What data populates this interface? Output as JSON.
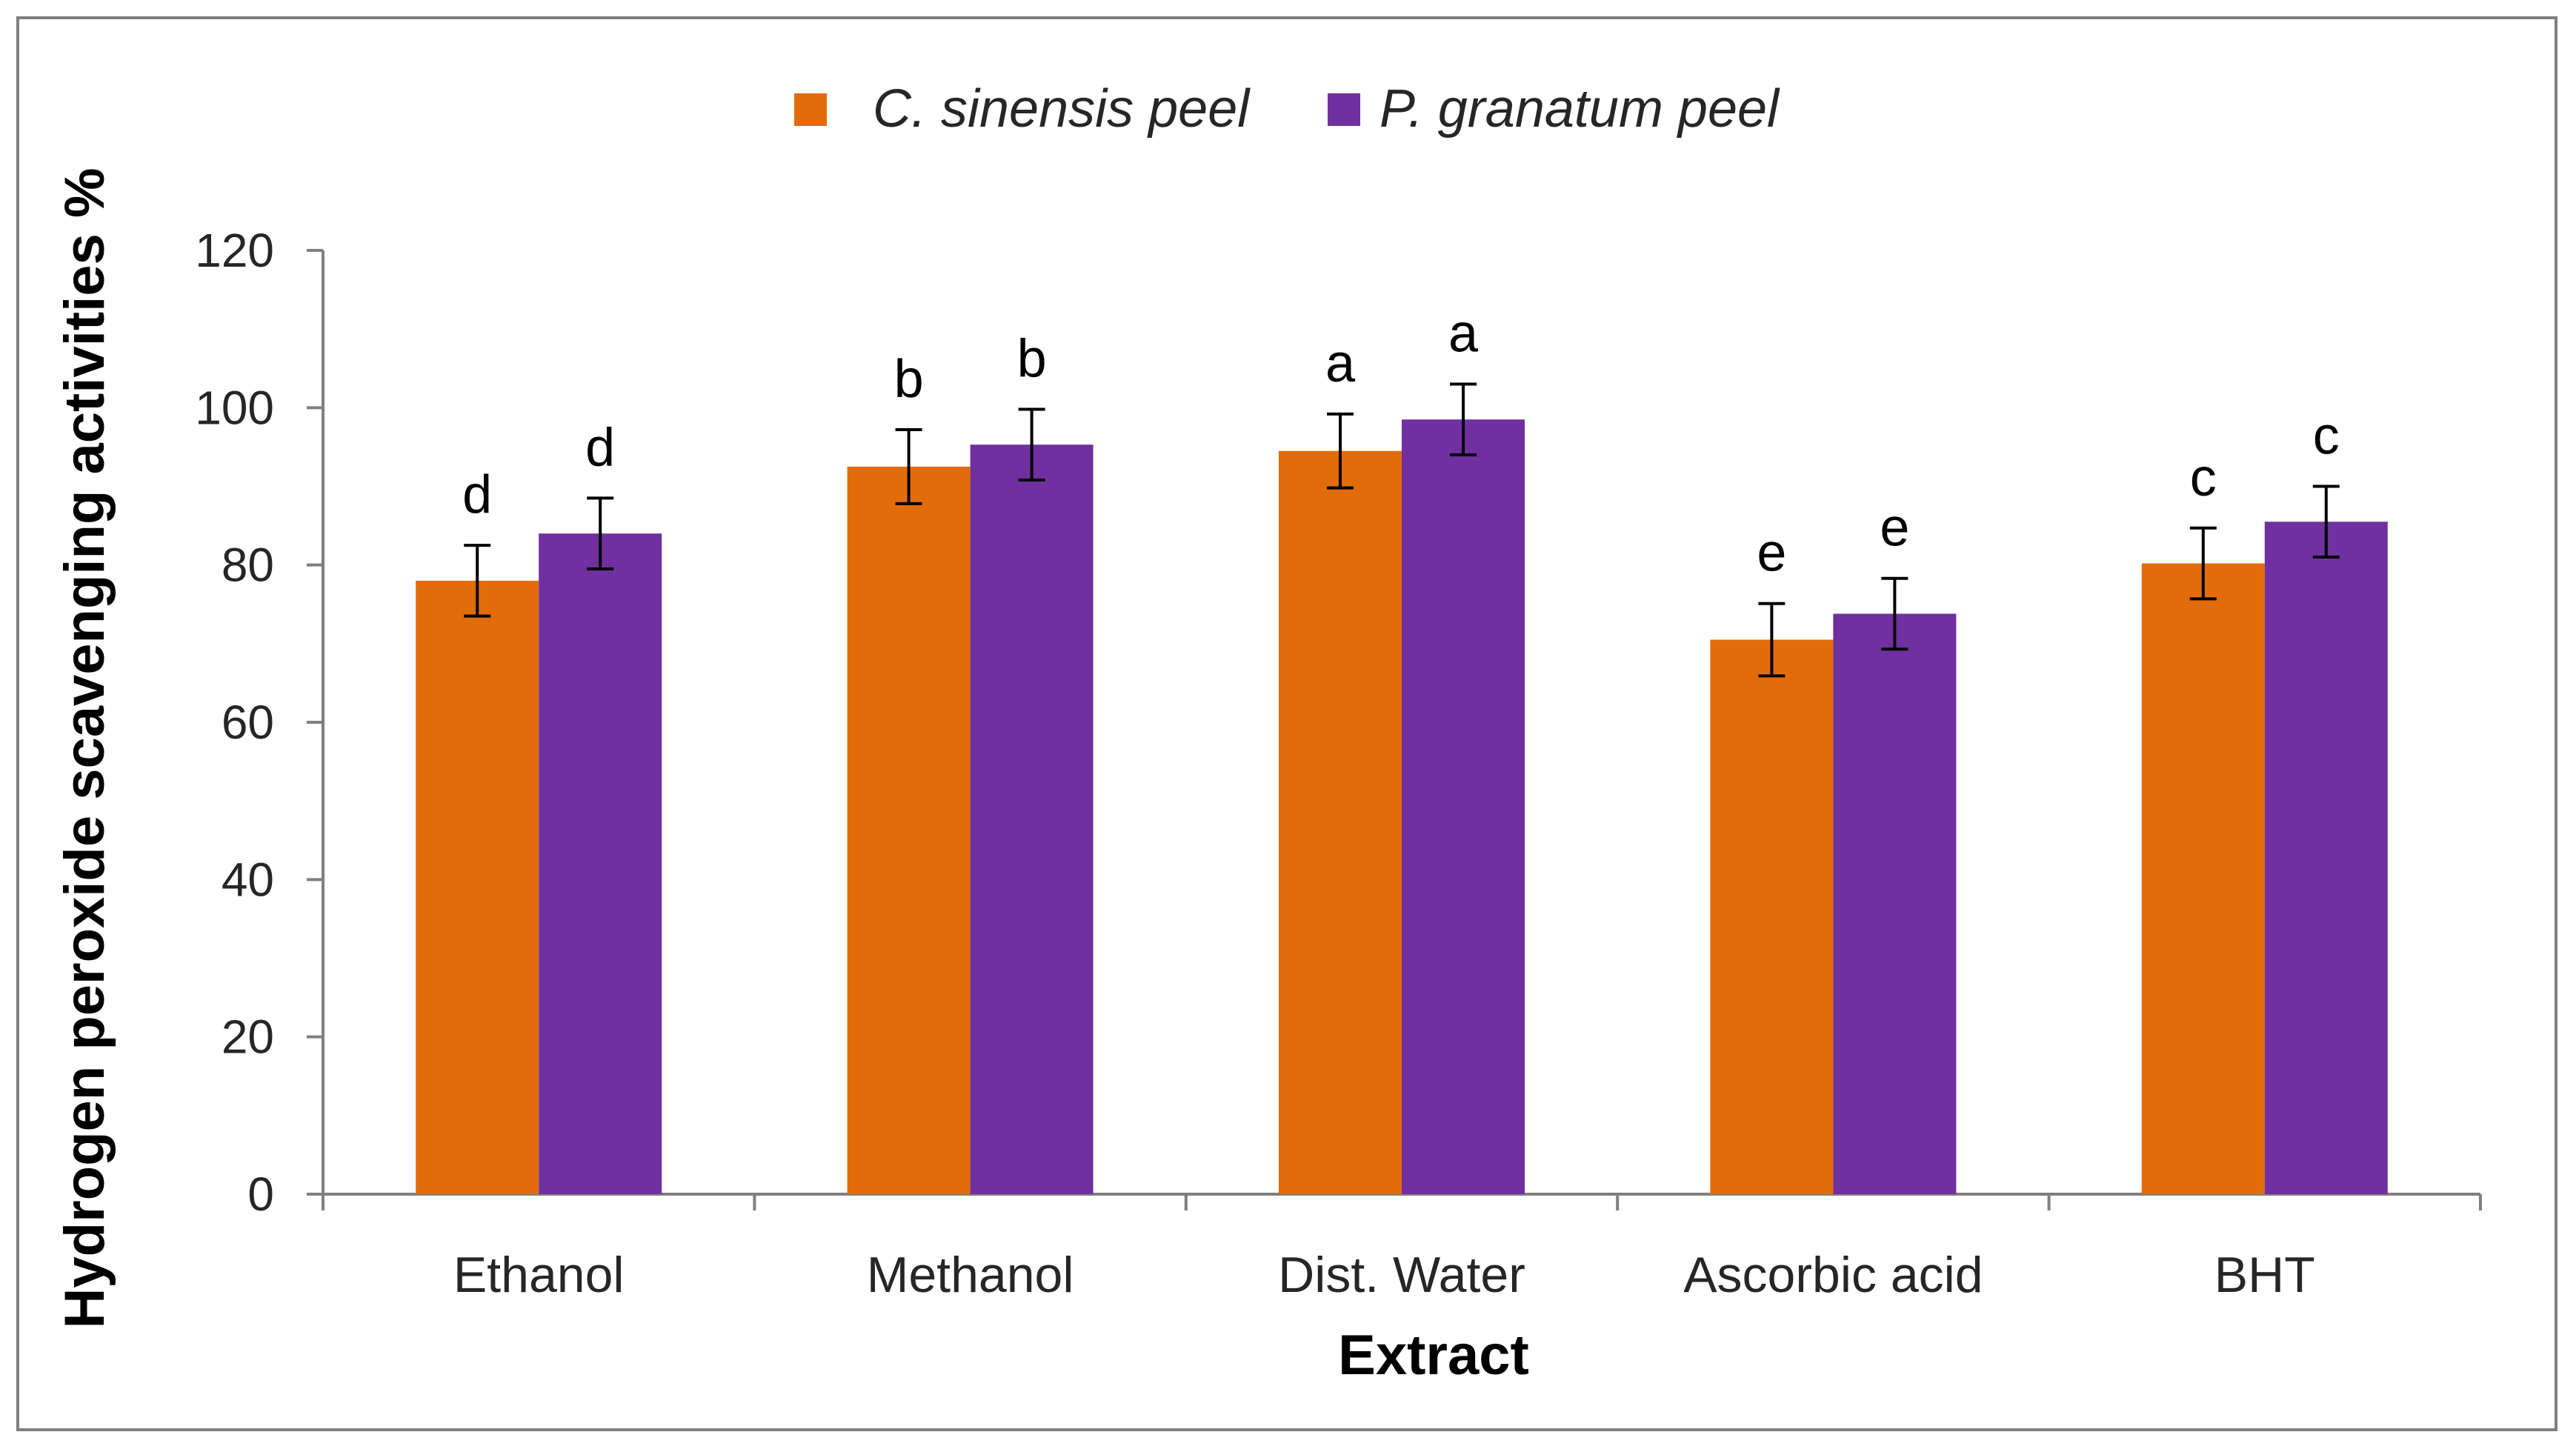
{
  "chart_data": {
    "type": "bar",
    "title": "",
    "xlabel": "Extract",
    "ylabel": "Hydrogen peroxide scavenging activities %",
    "ylim": [
      0,
      120
    ],
    "yticks": [
      0,
      20,
      40,
      60,
      80,
      100,
      120
    ],
    "grid": false,
    "legend_position": "top-center",
    "categories": [
      "Ethanol",
      "Methanol",
      "Dist. Water",
      "Ascorbic acid",
      "BHT"
    ],
    "series": [
      {
        "name": "C. sinensis peel",
        "color": "#e36c0a",
        "values": [
          78,
          92.5,
          94.5,
          70.5,
          80.2
        ],
        "errors": [
          4.5,
          4.7,
          4.7,
          4.6,
          4.5
        ],
        "labels": [
          "d",
          "b",
          "a",
          "e",
          "c"
        ]
      },
      {
        "name": "P. granatum peel",
        "color": "#7030a0",
        "values": [
          84,
          95.3,
          98.5,
          73.8,
          85.5
        ],
        "errors": [
          4.5,
          4.5,
          4.5,
          4.5,
          4.5
        ],
        "labels": [
          "d",
          "b",
          "a",
          "e",
          "c"
        ]
      }
    ]
  }
}
